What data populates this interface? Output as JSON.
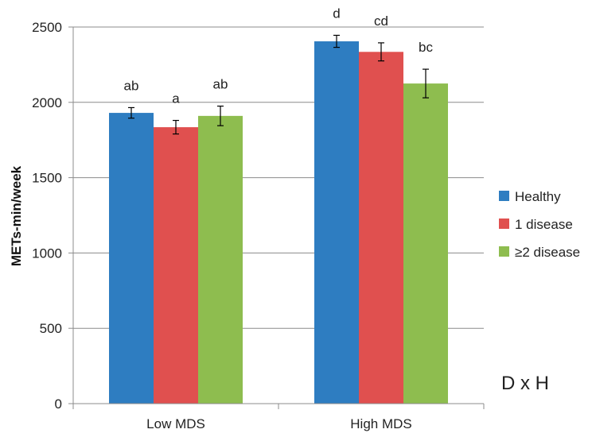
{
  "chart_data": {
    "type": "bar",
    "ylabel": "METs-min/week",
    "ylim": [
      0,
      2500
    ],
    "yticks": [
      0,
      500,
      1000,
      1500,
      2000,
      2500
    ],
    "grid": true,
    "categories": [
      "Low MDS",
      "High MDS"
    ],
    "series": [
      {
        "name": "Healthy",
        "color": "#2e7dc1",
        "values": [
          1930,
          2405
        ],
        "errors": [
          35,
          40
        ],
        "labels": [
          "ab",
          "d"
        ]
      },
      {
        "name": "1 disease",
        "color": "#e0504f",
        "values": [
          1835,
          2335
        ],
        "errors": [
          45,
          60
        ],
        "labels": [
          "a",
          "cd"
        ]
      },
      {
        "name": "≥2 disease",
        "color": "#8ebd4f",
        "values": [
          1910,
          2125
        ],
        "errors": [
          65,
          95
        ],
        "labels": [
          "ab",
          "bc"
        ]
      }
    ],
    "legend_position": "right",
    "annotation": "D x H"
  }
}
